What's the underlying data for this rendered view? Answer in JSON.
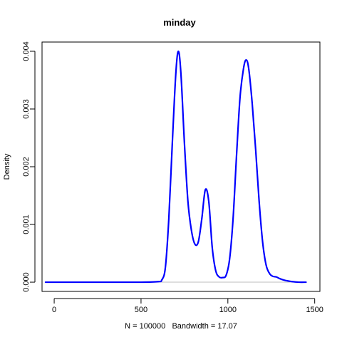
{
  "chart_data": {
    "type": "line",
    "title": "minday",
    "xlabel": "N = 100000   Bandwidth = 17.07",
    "ylabel": "Density",
    "xlim": [
      -70,
      1530
    ],
    "ylim": [
      -0.00016,
      0.00416
    ],
    "x_ticks": [
      0,
      500,
      1000,
      1500
    ],
    "x_tick_labels": [
      "0",
      "500",
      "1000",
      "1500"
    ],
    "y_ticks": [
      0,
      0.001,
      0.002,
      0.003,
      0.004
    ],
    "y_tick_labels": [
      "0.000",
      "0.001",
      "0.002",
      "0.003",
      "0.004"
    ],
    "grid": false,
    "legend": "none",
    "baseline": 0,
    "colors": {
      "line": "#0000ff",
      "baseline": "#bebebe",
      "frame": "#000000"
    },
    "series": [
      {
        "x": [
          -50,
          100,
          300,
          500,
          600,
          620,
          640,
          660,
          680,
          700,
          715,
          730,
          750,
          770,
          790,
          810,
          830,
          850,
          870,
          890,
          910,
          930,
          950,
          970,
          990,
          1010,
          1030,
          1050,
          1070,
          1090,
          1105,
          1120,
          1140,
          1160,
          1180,
          1200,
          1220,
          1240,
          1260,
          1280,
          1300,
          1330,
          1370,
          1410,
          1450
        ],
        "values": [
          0,
          0,
          0,
          0,
          1e-05,
          4e-05,
          0.00025,
          0.0011,
          0.0024,
          0.0036,
          0.004,
          0.0036,
          0.0024,
          0.0014,
          0.0009,
          0.00066,
          0.0007,
          0.0011,
          0.0016,
          0.0014,
          0.0006,
          0.0002,
          9e-05,
          8e-05,
          0.00012,
          0.0004,
          0.0011,
          0.0022,
          0.0032,
          0.0037,
          0.00385,
          0.0037,
          0.0031,
          0.0023,
          0.0014,
          0.0007,
          0.0003,
          0.00015,
          0.0001,
          9e-05,
          6e-05,
          3e-05,
          1e-05,
          0,
          0
        ]
      }
    ]
  }
}
